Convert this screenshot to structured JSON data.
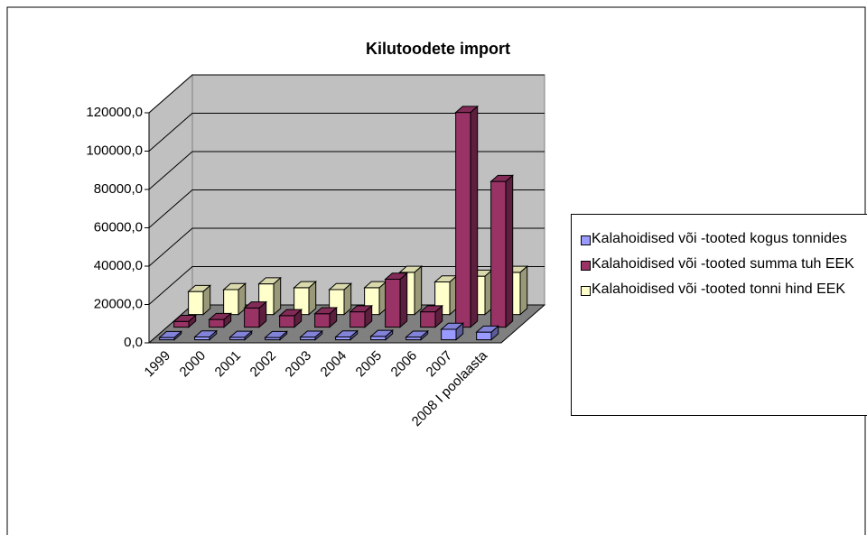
{
  "chart_data": {
    "type": "bar3d",
    "title": "Kilutoodete import",
    "categories": [
      "1999",
      "2000",
      "2001",
      "2002",
      "2003",
      "2004",
      "2005",
      "2006",
      "2007",
      "2008 I poolaasta"
    ],
    "series": [
      {
        "name": "Kalahoidised või -tooted kogus tonnides",
        "color": "#9999FF",
        "values": [
          1200,
          1500,
          1300,
          1200,
          1400,
          1500,
          1800,
          1400,
          5500,
          4000
        ]
      },
      {
        "name": "Kalahoidised või -tooted summa tuh EEK",
        "color": "#993366",
        "values": [
          3000,
          4000,
          10000,
          6000,
          7000,
          8000,
          25000,
          8000,
          112000,
          76000
        ]
      },
      {
        "name": "Kalahoidised või -tooted tonni hind  EEK",
        "color": "#FFFFCC",
        "values": [
          12000,
          13000,
          16000,
          14000,
          13000,
          14000,
          22000,
          17000,
          20000,
          22000
        ]
      }
    ],
    "ylim": [
      0,
      120000
    ],
    "yticks": [
      {
        "value": 0,
        "label": "0,0"
      },
      {
        "value": 20000,
        "label": "20000,0"
      },
      {
        "value": 40000,
        "label": "40000,0"
      },
      {
        "value": 60000,
        "label": "60000,0"
      },
      {
        "value": 80000,
        "label": "80000,0"
      },
      {
        "value": 100000,
        "label": "100000,0"
      },
      {
        "value": 120000,
        "label": "120000,0"
      }
    ],
    "grid": true
  }
}
